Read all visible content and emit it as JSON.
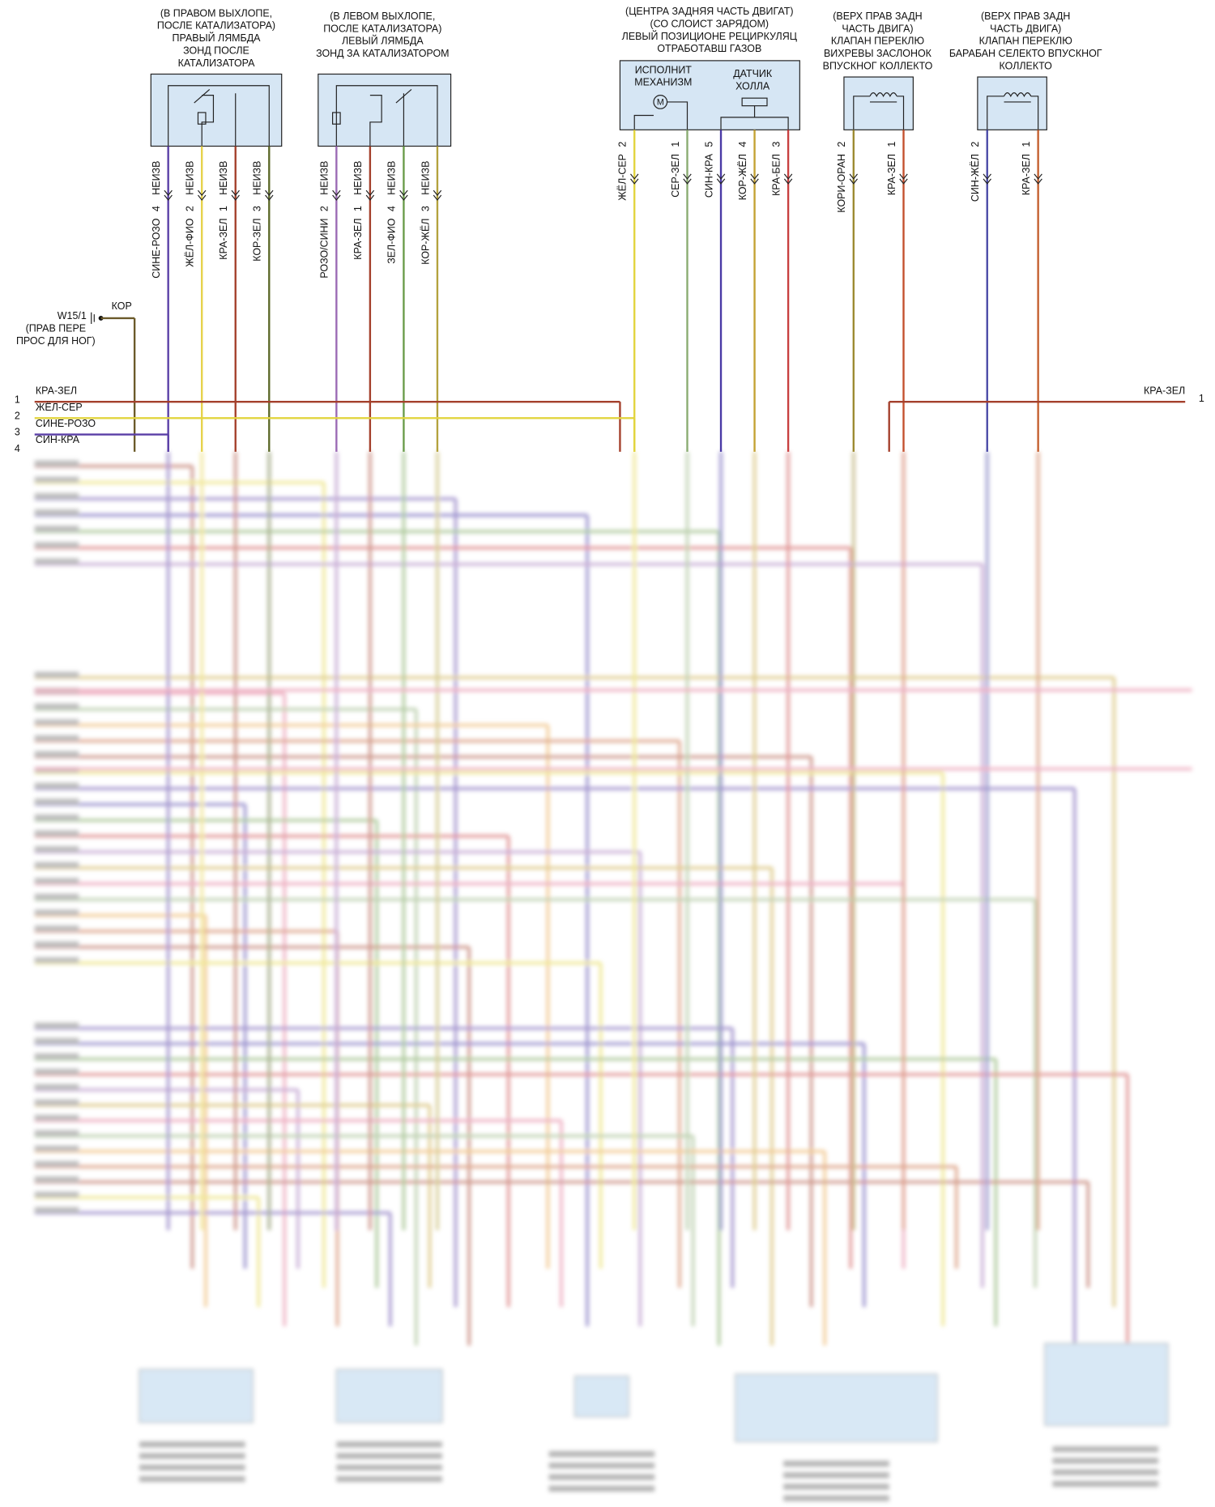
{
  "ground": {
    "id": "W15/1",
    "wire": "КОР",
    "location": [
      "(ПРАВ ПЕРЕ",
      "ПРОС ДЛЯ НОГ)"
    ]
  },
  "components": [
    {
      "label": [
        "(В ПРАВОМ ВЫХЛОПЕ,",
        "ПОСЛЕ КАТАЛИЗАТОРА)",
        "ПРАВЫЙ ЛЯМБДА",
        "ЗОНД ПОСЛЕ",
        "КАТАЛИЗАТОРА"
      ],
      "inner": [],
      "pins": [
        {
          "wire": "СИНЕ-РОЗО",
          "pin": "4",
          "connector": "НЕИЗВ"
        },
        {
          "wire": "ЖЁЛ-ФИО",
          "pin": "2",
          "connector": "НЕИЗВ"
        },
        {
          "wire": "КРА-ЗЕЛ",
          "pin": "1",
          "connector": "НЕИЗВ"
        },
        {
          "wire": "КОР-ЗЕЛ",
          "pin": "3",
          "connector": "НЕИЗВ"
        }
      ]
    },
    {
      "label": [
        "(В ЛЕВОМ ВЫХЛОПЕ,",
        "ПОСЛЕ КАТАЛИЗАТОРА)",
        "ЛЕВЫЙ ЛЯМБДА",
        "ЗОНД ЗА КАТАЛИЗАТОРОМ"
      ],
      "inner": [],
      "pins": [
        {
          "wire": "РОЗО/СИНИ",
          "pin": "2",
          "connector": "НЕИЗВ"
        },
        {
          "wire": "КРА-ЗЕЛ",
          "pin": "1",
          "connector": "НЕИЗВ"
        },
        {
          "wire": "ЗЕЛ-ФИО",
          "pin": "4",
          "connector": "НЕИЗВ"
        },
        {
          "wire": "КОР-ЖЁЛ",
          "pin": "3",
          "connector": "НЕИЗВ"
        }
      ]
    },
    {
      "label": [
        "(ЦЕНТРА ЗАДНЯЯ ЧАСТЬ ДВИГАТ)",
        "(СО СЛОИСТ ЗАРЯДОМ)",
        "ЛЕВЫЙ ПОЗИЦИОНЕ РЕЦИРКУЛЯЦ",
        "ОТРАБОТАВШ ГАЗОВ"
      ],
      "inner": [
        [
          "ИСПОЛНИТ",
          "МЕХАНИЗМ"
        ],
        [
          "ДАТЧИК",
          "ХОЛЛА"
        ],
        [
          "M"
        ]
      ],
      "pins": [
        {
          "wire": "ЖЁЛ-СЕР",
          "pin": "2"
        },
        {
          "wire": "СЕР-ЗЕЛ",
          "pin": "1"
        },
        {
          "wire": "СИН-КРА",
          "pin": "5"
        },
        {
          "wire": "КОР-ЖЁЛ",
          "pin": "4"
        },
        {
          "wire": "КРА-БЕЛ",
          "pin": "3"
        }
      ]
    },
    {
      "label": [
        "(ВЕРХ ПРАВ ЗАДН",
        "ЧАСТЬ ДВИГА)",
        "КЛАПАН ПЕРЕКЛЮ",
        "ВИХРЕВЫ ЗАСЛОНОК",
        "ВПУСКНОГ КОЛЛЕКТО"
      ],
      "inner": [],
      "pins": [
        {
          "wire": "КОРИ-ОРАН",
          "pin": "2"
        },
        {
          "wire": "КРА-ЗЕЛ",
          "pin": "1"
        }
      ]
    },
    {
      "label": [
        "(ВЕРХ ПРАВ ЗАДН",
        "ЧАСТЬ ДВИГА)",
        "КЛАПАН ПЕРЕКЛЮ",
        "БАРАБАН СЕЛЕКТО ВПУСКНОГ",
        "КОЛЛЕКТО"
      ],
      "inner": [],
      "pins": [
        {
          "wire": "СИН-ЖЁЛ",
          "pin": "2"
        },
        {
          "wire": "КРА-ЗЕЛ",
          "pin": "1"
        }
      ]
    }
  ],
  "bus_left": [
    {
      "num": "1",
      "wire": "КРА-ЗЕЛ"
    },
    {
      "num": "2",
      "wire": "ЖЁЛ-СЕР"
    },
    {
      "num": "3",
      "wire": "СИНЕ-РОЗО"
    },
    {
      "num": "4",
      "wire": "СИН-КРА"
    }
  ],
  "bus_right": [
    {
      "num": "1",
      "wire": "КРА-ЗЕЛ"
    }
  ]
}
